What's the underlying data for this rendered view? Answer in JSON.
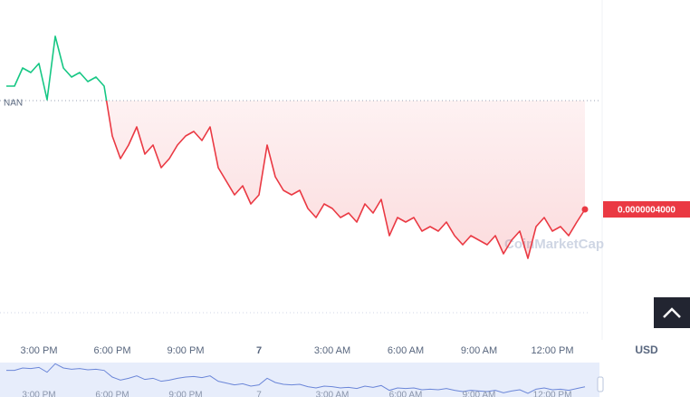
{
  "chart_data": {
    "type": "line",
    "categories": [
      null,
      null,
      null,
      null,
      "3:00 PM",
      null,
      null,
      null,
      null,
      null,
      null,
      null,
      null,
      "6:00 PM",
      null,
      null,
      null,
      null,
      null,
      null,
      null,
      null,
      "9:00 PM",
      null,
      null,
      null,
      null,
      null,
      null,
      null,
      null,
      "7",
      null,
      null,
      null,
      null,
      null,
      null,
      null,
      null,
      "3:00 AM",
      null,
      null,
      null,
      null,
      null,
      null,
      null,
      null,
      "6:00 AM",
      null,
      null,
      null,
      null,
      null,
      null,
      null,
      null,
      "9:00 AM",
      null,
      null,
      null,
      null,
      null,
      null,
      null,
      null,
      "12:00 PM",
      null,
      null,
      null,
      null
    ],
    "values": [
      4.68e-07,
      4.68e-07,
      4.78e-07,
      4.755e-07,
      4.805e-07,
      4.605e-07,
      4.955e-07,
      4.78e-07,
      4.73e-07,
      4.755e-07,
      4.705e-07,
      4.73e-07,
      4.68e-07,
      4.405e-07,
      4.28e-07,
      4.355e-07,
      4.455e-07,
      4.305e-07,
      4.355e-07,
      4.23e-07,
      4.28e-07,
      4.355e-07,
      4.405e-07,
      4.43e-07,
      4.38e-07,
      4.455e-07,
      4.23e-07,
      4.155e-07,
      4.08e-07,
      4.13e-07,
      4.03e-07,
      4.08e-07,
      4.355e-07,
      4.18e-07,
      4.105e-07,
      4.08e-07,
      4.105e-07,
      4.005e-07,
      3.955e-07,
      4.03e-07,
      4.005e-07,
      3.955e-07,
      3.98e-07,
      3.93e-07,
      4.03e-07,
      3.98e-07,
      4.055e-07,
      3.855e-07,
      3.955e-07,
      3.93e-07,
      3.955e-07,
      3.88e-07,
      3.905e-07,
      3.88e-07,
      3.93e-07,
      3.855e-07,
      3.805e-07,
      3.855e-07,
      3.83e-07,
      3.805e-07,
      3.855e-07,
      3.755e-07,
      3.83e-07,
      3.88e-07,
      3.73e-07,
      3.905e-07,
      3.955e-07,
      3.88e-07,
      3.905e-07,
      3.855e-07,
      3.93e-07,
      4e-07
    ],
    "ylim": [
      3.28e-07,
      5.155e-07
    ],
    "baseline": 4.6e-07,
    "baseline_label": "NAN",
    "up_color": "#16c784",
    "down_color": "#ea3943",
    "current_price_label": "0.0000004000",
    "currency": "USD",
    "watermark": "CoinMarketCap"
  }
}
